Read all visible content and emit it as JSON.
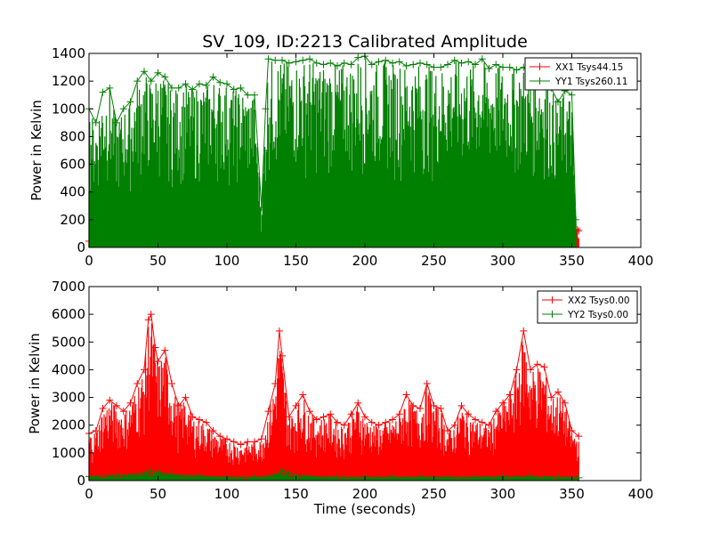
{
  "figure_title": "SV_109, ID:2213 Calibrated Amplitude",
  "colors": {
    "xx": "#ff0000",
    "yy": "#008000",
    "axes": "#000000",
    "background": "#ffffff"
  },
  "chart_data": [
    {
      "type": "line",
      "title": "SV_109, ID:2213 Calibrated Amplitude",
      "xlabel": "",
      "ylabel": "Power in Kelvin",
      "xlim": [
        0,
        400
      ],
      "ylim": [
        0,
        1400
      ],
      "xticks": [
        0,
        50,
        100,
        150,
        200,
        250,
        300,
        350,
        400
      ],
      "yticks": [
        0,
        200,
        400,
        600,
        800,
        1000,
        1200,
        1400
      ],
      "xtick_labels": [
        "0",
        "50",
        "100",
        "150",
        "200",
        "250",
        "300",
        "350",
        "400"
      ],
      "ytick_labels": [
        "0",
        "200",
        "400",
        "600",
        "800",
        "1000",
        "1200",
        "1400"
      ],
      "grid": false,
      "legend": "top-right",
      "marker": "+",
      "series": [
        {
          "name": "XX1 Tsys44.15",
          "color": "#ff0000",
          "x": [
            0,
            50,
            100,
            150,
            200,
            250,
            300,
            340,
            350,
            352,
            354,
            355
          ],
          "y": [
            45,
            45,
            45,
            45,
            45,
            45,
            45,
            45,
            80,
            110,
            130,
            120
          ]
        },
        {
          "name": "YY1 Tsys260.11",
          "color": "#008000",
          "x": [
            0,
            5,
            10,
            15,
            20,
            25,
            30,
            35,
            40,
            45,
            50,
            55,
            60,
            65,
            70,
            75,
            80,
            85,
            90,
            95,
            100,
            105,
            110,
            115,
            120,
            125,
            128,
            130,
            135,
            140,
            145,
            150,
            155,
            160,
            165,
            170,
            175,
            180,
            185,
            190,
            195,
            200,
            205,
            210,
            215,
            220,
            225,
            230,
            235,
            240,
            245,
            250,
            255,
            260,
            265,
            270,
            275,
            280,
            285,
            290,
            295,
            300,
            305,
            310,
            315,
            320,
            325,
            330,
            335,
            340,
            345,
            350,
            353
          ],
          "y": [
            1000,
            900,
            1120,
            1150,
            900,
            1000,
            1050,
            1200,
            1270,
            1200,
            1260,
            1230,
            1150,
            1150,
            1180,
            1140,
            1180,
            1170,
            1230,
            1190,
            1180,
            1140,
            1150,
            1100,
            1100,
            290,
            1000,
            1360,
            1350,
            1350,
            1330,
            1340,
            1350,
            1360,
            1330,
            1320,
            1330,
            1310,
            1330,
            1320,
            1370,
            1380,
            1320,
            1340,
            1350,
            1330,
            1340,
            1310,
            1320,
            1330,
            1320,
            1300,
            1300,
            1320,
            1350,
            1330,
            1340,
            1320,
            1360,
            1290,
            1320,
            1300,
            1300,
            1280,
            1300,
            1250,
            1270,
            1280,
            1150,
            1050,
            1130,
            1100,
            200
          ]
        }
      ]
    },
    {
      "type": "line",
      "title": "",
      "xlabel": "Time (seconds)",
      "ylabel": "Power in Kelvin",
      "xlim": [
        0,
        400
      ],
      "ylim": [
        0,
        7000
      ],
      "xticks": [
        0,
        50,
        100,
        150,
        200,
        250,
        300,
        350,
        400
      ],
      "yticks": [
        0,
        1000,
        2000,
        3000,
        4000,
        5000,
        6000,
        7000
      ],
      "xtick_labels": [
        "0",
        "50",
        "100",
        "150",
        "200",
        "250",
        "300",
        "350",
        "400"
      ],
      "ytick_labels": [
        "0",
        "1000",
        "2000",
        "3000",
        "4000",
        "5000",
        "6000",
        "7000"
      ],
      "grid": false,
      "legend": "top-right",
      "marker": "+",
      "series": [
        {
          "name": "XX2 Tsys0.00",
          "color": "#ff0000",
          "x": [
            0,
            5,
            10,
            15,
            20,
            25,
            30,
            35,
            40,
            43,
            45,
            48,
            50,
            55,
            60,
            65,
            70,
            75,
            80,
            85,
            90,
            95,
            100,
            105,
            110,
            115,
            120,
            125,
            130,
            135,
            138,
            140,
            145,
            150,
            155,
            160,
            165,
            170,
            175,
            180,
            185,
            190,
            195,
            200,
            205,
            210,
            215,
            220,
            225,
            230,
            235,
            240,
            245,
            250,
            255,
            260,
            265,
            270,
            275,
            280,
            285,
            290,
            295,
            300,
            305,
            310,
            315,
            320,
            325,
            330,
            335,
            340,
            345,
            350,
            355
          ],
          "y": [
            1700,
            1800,
            2600,
            2900,
            2700,
            2500,
            2800,
            3500,
            4000,
            5800,
            6000,
            4800,
            4300,
            4700,
            3500,
            2700,
            3000,
            2300,
            2200,
            2100,
            1800,
            1600,
            1500,
            1400,
            1300,
            1400,
            1400,
            1500,
            2500,
            3500,
            5400,
            4500,
            2300,
            2700,
            3100,
            2500,
            2200,
            2300,
            2400,
            2100,
            2000,
            2400,
            2800,
            2300,
            2100,
            2000,
            2100,
            2200,
            2400,
            3100,
            2700,
            2600,
            3500,
            2700,
            2600,
            1800,
            2000,
            2700,
            2400,
            2200,
            2100,
            2000,
            2500,
            2800,
            3100,
            4000,
            5400,
            4000,
            4200,
            4100,
            3000,
            3200,
            2800,
            1800,
            1600
          ]
        },
        {
          "name": "YY2 Tsys0.00",
          "color": "#008000",
          "x": [
            0,
            20,
            40,
            45,
            50,
            60,
            80,
            100,
            120,
            135,
            140,
            145,
            160,
            180,
            200,
            220,
            240,
            260,
            280,
            300,
            320,
            340,
            355
          ],
          "y": [
            150,
            180,
            260,
            330,
            300,
            220,
            170,
            120,
            120,
            200,
            350,
            250,
            150,
            120,
            120,
            120,
            130,
            120,
            120,
            150,
            150,
            130,
            100
          ]
        }
      ]
    }
  ]
}
